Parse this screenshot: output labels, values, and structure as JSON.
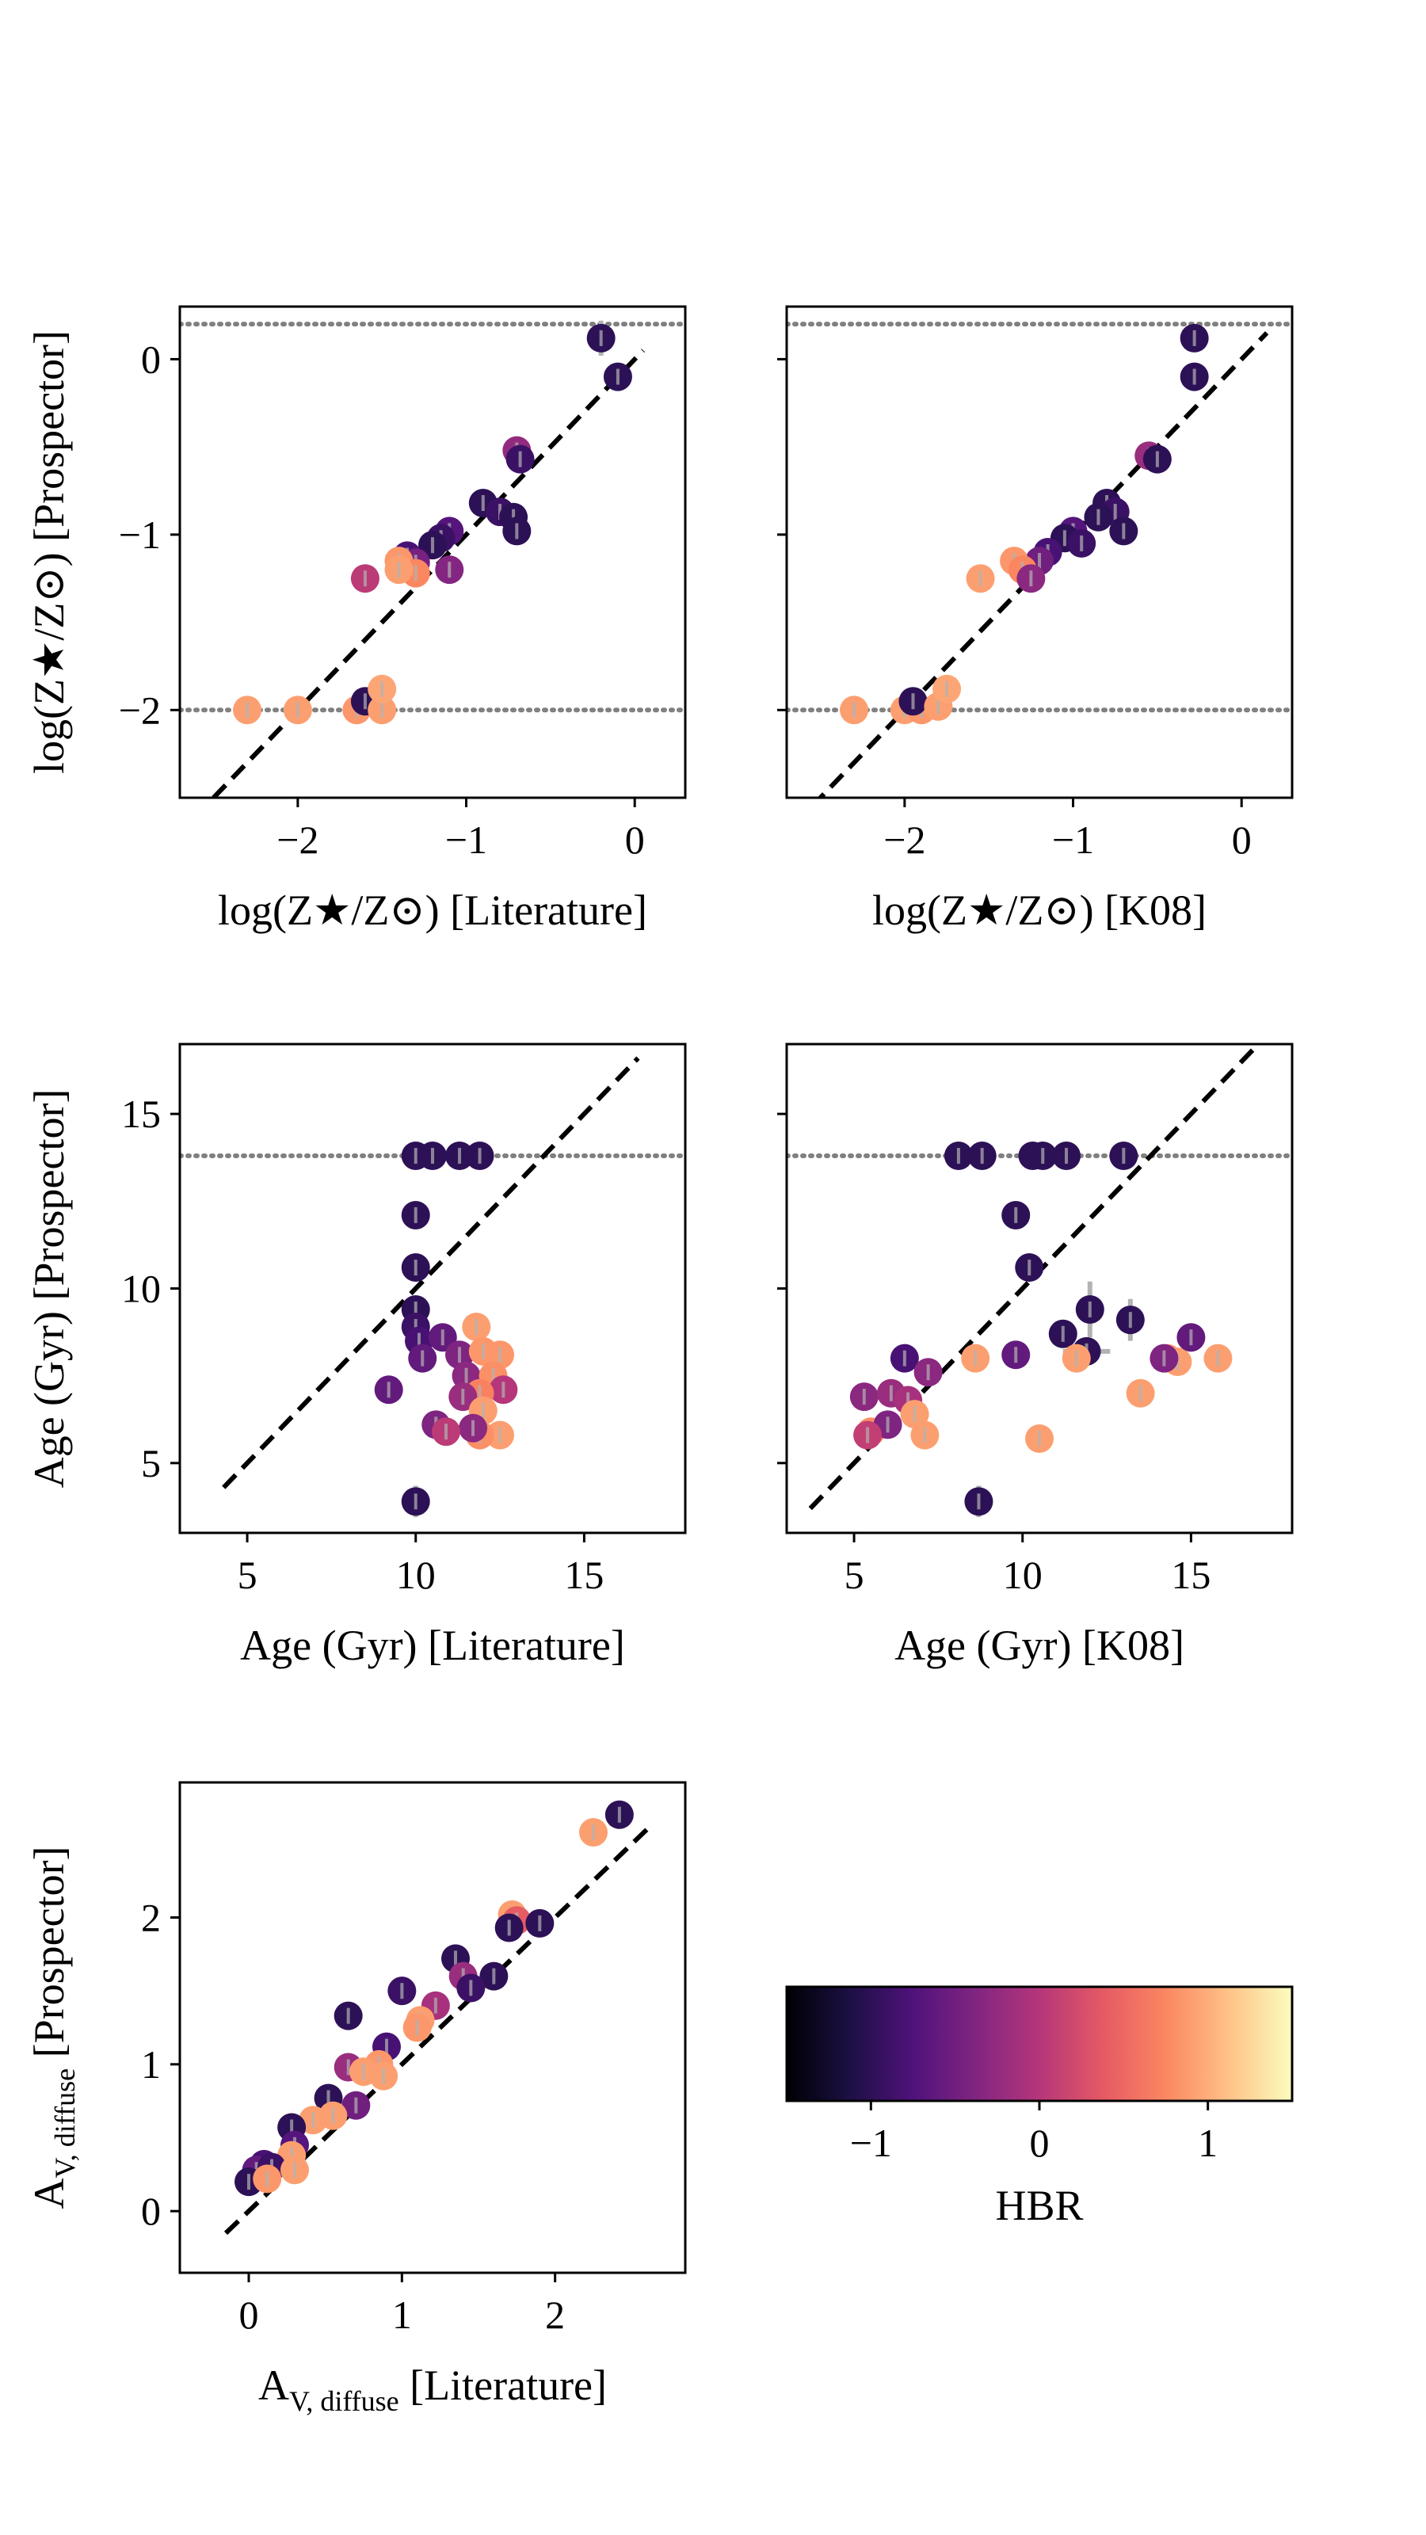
{
  "colors": {
    "reference_line": "#000000",
    "limit_line": "#808080",
    "error_bar": "#b3b3b3",
    "axes": "#000000",
    "colormap": [
      "#000004",
      "#1c1044",
      "#4f127b",
      "#812581",
      "#b5367a",
      "#e55964",
      "#fb8761",
      "#fec287",
      "#fcfdbf"
    ]
  },
  "chart_data": [
    {
      "id": "metallicity_literature",
      "type": "scatter",
      "xlabel": "log(Z★/Z⊙) [Literature]",
      "ylabel": "log(Z★/Z⊙) [Prospector]",
      "xlim": [
        -2.7,
        0.3
      ],
      "ylim": [
        -2.5,
        0.3
      ],
      "xticks": [
        {
          "value": -2,
          "label": "−2"
        },
        {
          "value": -1,
          "label": "−1"
        },
        {
          "value": 0,
          "label": "0"
        }
      ],
      "yticks": [
        {
          "value": -2,
          "label": "−2"
        },
        {
          "value": -1,
          "label": "−1"
        },
        {
          "value": 0,
          "label": "0"
        }
      ],
      "one_to_one": [
        -2.5,
        0.05
      ],
      "limit_lines": [
        0.2,
        -2.0
      ],
      "points": [
        {
          "x": -0.2,
          "y": 0.12,
          "hbr": -1.0,
          "yerr": 0.1
        },
        {
          "x": -0.1,
          "y": -0.1,
          "hbr": -1.0
        },
        {
          "x": -0.7,
          "y": -0.52,
          "hbr": -0.25
        },
        {
          "x": -0.68,
          "y": -0.57,
          "hbr": -0.9
        },
        {
          "x": -0.9,
          "y": -0.82,
          "hbr": -1.0
        },
        {
          "x": -0.8,
          "y": -0.87,
          "hbr": -0.9
        },
        {
          "x": -0.72,
          "y": -0.9,
          "hbr": -1.0
        },
        {
          "x": -0.7,
          "y": -0.98,
          "hbr": -1.0,
          "yerr": 0.06
        },
        {
          "x": -1.1,
          "y": -0.98,
          "hbr": -0.7
        },
        {
          "x": -1.15,
          "y": -1.02,
          "hbr": -0.9
        },
        {
          "x": -1.2,
          "y": -1.06,
          "hbr": -1.0
        },
        {
          "x": -1.35,
          "y": -1.12,
          "hbr": -0.8
        },
        {
          "x": -1.3,
          "y": -1.16,
          "hbr": -0.45
        },
        {
          "x": -1.4,
          "y": -1.15,
          "hbr": 0.85
        },
        {
          "x": -1.1,
          "y": -1.2,
          "hbr": -0.35
        },
        {
          "x": -1.3,
          "y": -1.22,
          "hbr": 0.75
        },
        {
          "x": -1.4,
          "y": -1.2,
          "hbr": 0.9
        },
        {
          "x": -1.6,
          "y": -1.25,
          "hbr": 0.05
        },
        {
          "x": -2.3,
          "y": -2.0,
          "hbr": 0.9
        },
        {
          "x": -2.0,
          "y": -2.0,
          "hbr": 0.9
        },
        {
          "x": -1.65,
          "y": -2.0,
          "hbr": 0.85
        },
        {
          "x": -1.6,
          "y": -1.95,
          "hbr": -1.0
        },
        {
          "x": -1.5,
          "y": -2.0,
          "hbr": 0.9
        },
        {
          "x": -1.5,
          "y": -1.88,
          "hbr": 0.95
        }
      ]
    },
    {
      "id": "metallicity_k08",
      "type": "scatter",
      "xlabel": "log(Z★/Z⊙) [K08]",
      "ylabel": "",
      "xlim": [
        -2.7,
        0.3
      ],
      "ylim": [
        -2.5,
        0.3
      ],
      "xticks": [
        {
          "value": -2,
          "label": "−2"
        },
        {
          "value": -1,
          "label": "−1"
        },
        {
          "value": 0,
          "label": "0"
        }
      ],
      "yticks": [
        {
          "value": -2,
          "label": ""
        },
        {
          "value": -1,
          "label": ""
        },
        {
          "value": 0,
          "label": ""
        }
      ],
      "one_to_one": [
        -2.55,
        0.15
      ],
      "limit_lines": [
        0.2,
        -2.0
      ],
      "points": [
        {
          "x": -0.28,
          "y": 0.12,
          "hbr": -1.0
        },
        {
          "x": -0.28,
          "y": -0.1,
          "hbr": -1.0
        },
        {
          "x": -0.55,
          "y": -0.55,
          "hbr": -0.2
        },
        {
          "x": -0.5,
          "y": -0.57,
          "hbr": -1.0
        },
        {
          "x": -0.8,
          "y": -0.82,
          "hbr": -1.0
        },
        {
          "x": -0.75,
          "y": -0.87,
          "hbr": -0.9
        },
        {
          "x": -0.85,
          "y": -0.9,
          "hbr": -1.0
        },
        {
          "x": -0.7,
          "y": -0.98,
          "hbr": -1.0
        },
        {
          "x": -1.0,
          "y": -0.98,
          "hbr": -0.7
        },
        {
          "x": -1.05,
          "y": -1.02,
          "hbr": -1.0
        },
        {
          "x": -0.95,
          "y": -1.05,
          "hbr": -0.9
        },
        {
          "x": -1.15,
          "y": -1.1,
          "hbr": -0.8
        },
        {
          "x": -1.2,
          "y": -1.15,
          "hbr": -0.5
        },
        {
          "x": -1.35,
          "y": -1.15,
          "hbr": 0.85
        },
        {
          "x": -1.3,
          "y": -1.2,
          "hbr": 0.75
        },
        {
          "x": -1.25,
          "y": -1.25,
          "hbr": -0.3
        },
        {
          "x": -1.55,
          "y": -1.25,
          "hbr": 0.9
        },
        {
          "x": -2.3,
          "y": -2.0,
          "hbr": 0.9
        },
        {
          "x": -2.0,
          "y": -2.0,
          "hbr": 0.9
        },
        {
          "x": -1.9,
          "y": -2.0,
          "hbr": 0.85
        },
        {
          "x": -1.95,
          "y": -1.95,
          "hbr": -1.0
        },
        {
          "x": -1.8,
          "y": -1.98,
          "hbr": 0.9
        },
        {
          "x": -1.75,
          "y": -1.88,
          "hbr": 0.95
        }
      ]
    },
    {
      "id": "age_literature",
      "type": "scatter",
      "xlabel": "Age (Gyr) [Literature]",
      "ylabel": "Age (Gyr) [Prospector]",
      "xlim": [
        3,
        18
      ],
      "ylim": [
        3,
        17
      ],
      "xticks": [
        {
          "value": 5,
          "label": "5"
        },
        {
          "value": 10,
          "label": "10"
        },
        {
          "value": 15,
          "label": "15"
        }
      ],
      "yticks": [
        {
          "value": 5,
          "label": "5"
        },
        {
          "value": 10,
          "label": "10"
        },
        {
          "value": 15,
          "label": "15"
        }
      ],
      "one_to_one": [
        4.3,
        16.6
      ],
      "limit_lines": [
        13.8
      ],
      "points": [
        {
          "x": 10.0,
          "y": 13.8,
          "hbr": -1.0
        },
        {
          "x": 10.5,
          "y": 13.8,
          "hbr": -1.0
        },
        {
          "x": 11.3,
          "y": 13.8,
          "hbr": -1.0
        },
        {
          "x": 11.9,
          "y": 13.8,
          "hbr": -1.0
        },
        {
          "x": 10.0,
          "y": 12.1,
          "hbr": -1.0
        },
        {
          "x": 10.0,
          "y": 10.6,
          "hbr": -1.0
        },
        {
          "x": 10.0,
          "y": 9.4,
          "hbr": -1.0
        },
        {
          "x": 10.0,
          "y": 8.9,
          "hbr": -0.9
        },
        {
          "x": 10.1,
          "y": 8.5,
          "hbr": -0.8
        },
        {
          "x": 10.2,
          "y": 8.0,
          "hbr": -0.6
        },
        {
          "x": 10.8,
          "y": 8.6,
          "hbr": -0.6
        },
        {
          "x": 11.3,
          "y": 8.1,
          "hbr": -0.4
        },
        {
          "x": 11.5,
          "y": 7.5,
          "hbr": -0.3
        },
        {
          "x": 11.8,
          "y": 8.9,
          "hbr": 0.9
        },
        {
          "x": 12.0,
          "y": 8.2,
          "hbr": 0.85
        },
        {
          "x": 12.5,
          "y": 8.1,
          "hbr": 0.85
        },
        {
          "x": 12.3,
          "y": 7.5,
          "hbr": 0.8
        },
        {
          "x": 12.6,
          "y": 7.1,
          "hbr": 0.0
        },
        {
          "x": 11.9,
          "y": 7.0,
          "hbr": 0.7
        },
        {
          "x": 11.4,
          "y": 6.9,
          "hbr": -0.2
        },
        {
          "x": 12.0,
          "y": 6.5,
          "hbr": 0.9
        },
        {
          "x": 12.5,
          "y": 5.8,
          "hbr": 0.9
        },
        {
          "x": 11.9,
          "y": 5.8,
          "hbr": 0.8
        },
        {
          "x": 11.7,
          "y": 6.0,
          "hbr": -0.3
        },
        {
          "x": 10.6,
          "y": 6.1,
          "hbr": -0.4
        },
        {
          "x": 10.9,
          "y": 5.9,
          "hbr": 0.05
        },
        {
          "x": 9.2,
          "y": 7.1,
          "hbr": -0.6
        },
        {
          "x": 10.0,
          "y": 3.9,
          "hbr": -1.0,
          "yerr": 0.45
        }
      ]
    },
    {
      "id": "age_k08",
      "type": "scatter",
      "xlabel": "Age (Gyr) [K08]",
      "ylabel": "",
      "xlim": [
        3,
        18
      ],
      "ylim": [
        3,
        17
      ],
      "xticks": [
        {
          "value": 5,
          "label": "5"
        },
        {
          "value": 10,
          "label": "10"
        },
        {
          "value": 15,
          "label": "15"
        }
      ],
      "yticks": [
        {
          "value": 5,
          "label": ""
        },
        {
          "value": 10,
          "label": ""
        },
        {
          "value": 15,
          "label": ""
        }
      ],
      "one_to_one": [
        3.7,
        17.5
      ],
      "limit_lines": [
        13.8
      ],
      "points": [
        {
          "x": 8.1,
          "y": 13.8,
          "hbr": -1.0
        },
        {
          "x": 8.8,
          "y": 13.8,
          "hbr": -1.0
        },
        {
          "x": 10.3,
          "y": 13.8,
          "hbr": -1.0
        },
        {
          "x": 10.6,
          "y": 13.8,
          "hbr": -1.0
        },
        {
          "x": 11.3,
          "y": 13.8,
          "hbr": -1.0
        },
        {
          "x": 13.0,
          "y": 13.8,
          "hbr": -1.0
        },
        {
          "x": 9.8,
          "y": 12.1,
          "hbr": -1.0
        },
        {
          "x": 10.2,
          "y": 10.6,
          "hbr": -1.0
        },
        {
          "x": 12.0,
          "y": 9.4,
          "hbr": -1.0,
          "yerr": 0.8
        },
        {
          "x": 13.2,
          "y": 9.1,
          "hbr": -1.0,
          "yerr": 0.6
        },
        {
          "x": 11.2,
          "y": 8.7,
          "hbr": -1.0
        },
        {
          "x": 11.9,
          "y": 8.2,
          "hbr": -1.0,
          "xerr": 0.7
        },
        {
          "x": 11.6,
          "y": 8.0,
          "hbr": 0.9
        },
        {
          "x": 14.3,
          "y": 8.0,
          "hbr": 0.85
        },
        {
          "x": 14.6,
          "y": 7.9,
          "hbr": 0.9
        },
        {
          "x": 15.8,
          "y": 8.0,
          "hbr": 0.9
        },
        {
          "x": 15.0,
          "y": 8.6,
          "hbr": -0.6
        },
        {
          "x": 14.2,
          "y": 8.0,
          "hbr": -0.4
        },
        {
          "x": 9.8,
          "y": 8.1,
          "hbr": -0.6
        },
        {
          "x": 8.6,
          "y": 8.0,
          "hbr": 0.9
        },
        {
          "x": 6.5,
          "y": 8.0,
          "hbr": -0.8
        },
        {
          "x": 7.2,
          "y": 7.6,
          "hbr": -0.3
        },
        {
          "x": 13.5,
          "y": 7.0,
          "hbr": 0.9
        },
        {
          "x": 5.3,
          "y": 6.9,
          "hbr": -0.3
        },
        {
          "x": 6.1,
          "y": 7.0,
          "hbr": -0.2
        },
        {
          "x": 6.6,
          "y": 6.8,
          "hbr": -0.1
        },
        {
          "x": 6.8,
          "y": 6.4,
          "hbr": 0.9
        },
        {
          "x": 5.5,
          "y": 5.9,
          "hbr": 0.8
        },
        {
          "x": 6.0,
          "y": 6.1,
          "hbr": -0.4
        },
        {
          "x": 7.1,
          "y": 5.8,
          "hbr": 0.9
        },
        {
          "x": 5.4,
          "y": 5.8,
          "hbr": 0.1
        },
        {
          "x": 10.5,
          "y": 5.7,
          "hbr": 0.9
        },
        {
          "x": 8.7,
          "y": 3.9,
          "hbr": -1.0,
          "yerr": 0.45
        }
      ]
    },
    {
      "id": "dust_literature",
      "type": "scatter",
      "xlabel": {
        "base": "A",
        "sub": "V, diffuse",
        "suffix": " [Literature]"
      },
      "ylabel": {
        "base": "A",
        "sub": "V, diffuse",
        "suffix": " [Prospector]"
      },
      "xlim": [
        -0.45,
        2.85
      ],
      "ylim": [
        -0.42,
        2.92
      ],
      "xticks": [
        {
          "value": 0,
          "label": "0"
        },
        {
          "value": 1,
          "label": "1"
        },
        {
          "value": 2,
          "label": "2"
        }
      ],
      "yticks": [
        {
          "value": 0,
          "label": "0"
        },
        {
          "value": 1,
          "label": "1"
        },
        {
          "value": 2,
          "label": "2"
        }
      ],
      "one_to_one": [
        -0.15,
        2.6
      ],
      "limit_lines": [],
      "points": [
        {
          "x": 2.42,
          "y": 2.7,
          "hbr": -1.0
        },
        {
          "x": 2.25,
          "y": 2.58,
          "hbr": 0.9
        },
        {
          "x": 1.72,
          "y": 2.02,
          "hbr": 0.9
        },
        {
          "x": 1.75,
          "y": 1.98,
          "hbr": 0.4
        },
        {
          "x": 1.9,
          "y": 1.96,
          "hbr": -1.0
        },
        {
          "x": 1.7,
          "y": 1.93,
          "hbr": -1.0
        },
        {
          "x": 1.35,
          "y": 1.72,
          "hbr": -1.0
        },
        {
          "x": 1.6,
          "y": 1.6,
          "hbr": -1.0
        },
        {
          "x": 1.4,
          "y": 1.6,
          "hbr": -0.2
        },
        {
          "x": 1.45,
          "y": 1.52,
          "hbr": -0.9
        },
        {
          "x": 1.0,
          "y": 1.5,
          "hbr": -0.9
        },
        {
          "x": 1.22,
          "y": 1.4,
          "hbr": -0.1
        },
        {
          "x": 0.65,
          "y": 1.33,
          "hbr": -1.0
        },
        {
          "x": 1.12,
          "y": 1.3,
          "hbr": 0.9
        },
        {
          "x": 1.1,
          "y": 1.25,
          "hbr": 0.85
        },
        {
          "x": 0.9,
          "y": 1.12,
          "hbr": -0.8
        },
        {
          "x": 0.85,
          "y": 1.0,
          "hbr": 0.85
        },
        {
          "x": 0.65,
          "y": 0.98,
          "hbr": -0.2
        },
        {
          "x": 0.75,
          "y": 0.95,
          "hbr": 0.9
        },
        {
          "x": 0.88,
          "y": 0.92,
          "hbr": 0.9
        },
        {
          "x": 0.52,
          "y": 0.77,
          "hbr": -1.0
        },
        {
          "x": 0.7,
          "y": 0.72,
          "hbr": -0.5
        },
        {
          "x": 0.55,
          "y": 0.65,
          "hbr": 0.9
        },
        {
          "x": 0.42,
          "y": 0.62,
          "hbr": 0.9
        },
        {
          "x": 0.28,
          "y": 0.57,
          "hbr": -1.0
        },
        {
          "x": 0.3,
          "y": 0.45,
          "hbr": -0.7
        },
        {
          "x": 0.28,
          "y": 0.38,
          "hbr": 0.9
        },
        {
          "x": 0.1,
          "y": 0.32,
          "hbr": -0.8
        },
        {
          "x": 0.05,
          "y": 0.28,
          "hbr": -0.6
        },
        {
          "x": 0.15,
          "y": 0.3,
          "hbr": -0.9
        },
        {
          "x": 0.3,
          "y": 0.28,
          "hbr": 0.9
        },
        {
          "x": 0.0,
          "y": 0.2,
          "hbr": -1.0
        },
        {
          "x": 0.12,
          "y": 0.22,
          "hbr": 0.85
        }
      ]
    },
    {
      "id": "hbr_colorbar",
      "type": "colorbar",
      "label": "HBR",
      "range": [
        -1.5,
        1.5
      ],
      "ticks": [
        {
          "value": -1,
          "label": "−1"
        },
        {
          "value": 0,
          "label": "0"
        },
        {
          "value": 1,
          "label": "1"
        }
      ]
    }
  ]
}
